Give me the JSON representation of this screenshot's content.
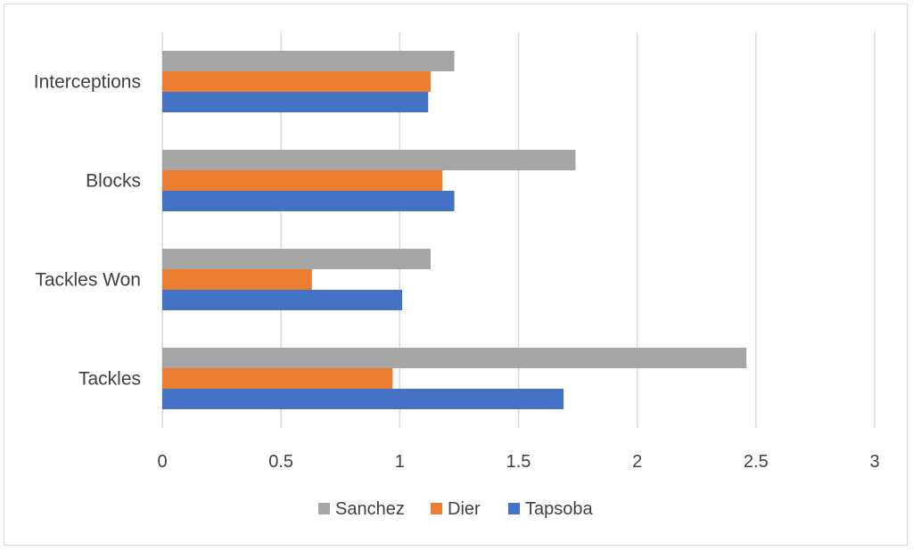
{
  "chart_data": {
    "type": "bar",
    "orientation": "horizontal",
    "categories": [
      "Tackles",
      "Tackles Won",
      "Blocks",
      "Interceptions"
    ],
    "series": [
      {
        "name": "Tapsoba",
        "color": "#4472c4",
        "values": [
          1.69,
          1.01,
          1.23,
          1.12
        ]
      },
      {
        "name": "Dier",
        "color": "#ed7d31",
        "values": [
          0.97,
          0.63,
          1.18,
          1.13
        ]
      },
      {
        "name": "Sanchez",
        "color": "#a5a5a5",
        "values": [
          2.46,
          1.13,
          1.74,
          1.23
        ]
      }
    ],
    "xlim": [
      0,
      3
    ],
    "xticks": [
      "0",
      "0.5",
      "1",
      "1.5",
      "2",
      "2.5",
      "3"
    ],
    "grid": "vertical",
    "legend_position": "bottom",
    "legend_order": [
      "Sanchez",
      "Dier",
      "Tapsoba"
    ],
    "title": "",
    "xlabel": "",
    "ylabel": ""
  }
}
